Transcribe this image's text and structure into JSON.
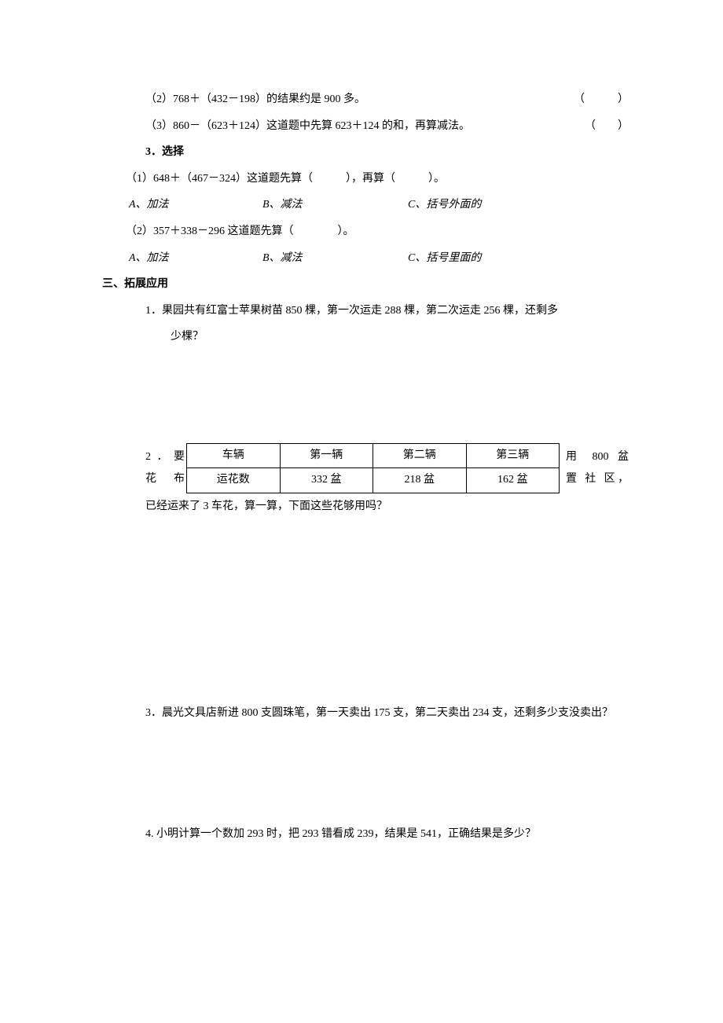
{
  "q2_2": "（2）768＋（432－198）的结果约是 900 多。",
  "q2_3": "（3）860－（623＋124）这道题中先算 623＋124 的和，再算减法。",
  "paren_wide": "（　　　）",
  "paren_narrow": "（　　）",
  "q3_head": "3．选择",
  "q3_1": "（1）648＋（467－324）这道题先算（　　　），再算（　　　）。",
  "q3_2": "（2）357＋338－296 这道题先算（　　　　）。",
  "ch_a": "A、加法",
  "ch_b": "B、减法",
  "ch_c_outer": "C、括号外面的",
  "ch_c_inner": "C、括号里面的",
  "sec3": "三、拓展应用",
  "wp1": "1．果园共有红富士苹果树苗 850 棵，第一次运走 288 棵，第二次运走 256 棵，还剩多少棵？",
  "wp2_left_1": "2．要",
  "wp2_left_2": "花 布",
  "wp2_right_1": "用 800 盆",
  "wp2_right_2": "置 社 区，",
  "wp2_after": "已经运来了 3 车花，算一算，下面这些花够用吗？",
  "table": {
    "headers": [
      "车辆",
      "第一辆",
      "第二辆",
      "第三辆"
    ],
    "row_label": "运花数",
    "values": [
      "332 盆",
      "218 盆",
      "162 盆"
    ]
  },
  "wp3": "3．晨光文具店新进 800 支圆珠笔，第一天卖出 175 支，第二天卖出 234 支，还剩多少支没卖出？",
  "wp4": "4. 小明计算一个数加 293 时，把 293 错看成 239，结果是 541，正确结果是多少？"
}
